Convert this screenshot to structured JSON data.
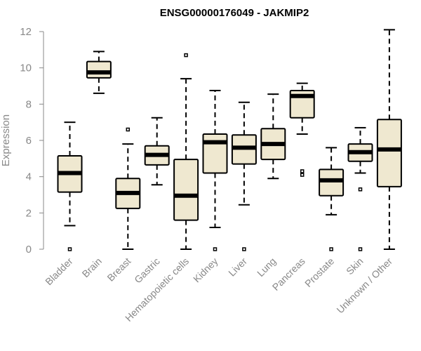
{
  "colors": {
    "box_fill": "#efe8d0",
    "stroke": "#000000",
    "axis": "#888888",
    "text": "#888888"
  },
  "chart_data": {
    "type": "box",
    "title": "ENSG00000176049 - JAKMIP2",
    "xlabel": "",
    "ylabel": "Expression",
    "ylim": [
      0,
      12
    ],
    "yticks": [
      0,
      2,
      4,
      6,
      8,
      10,
      12
    ],
    "categories": [
      "Bladder",
      "Brain",
      "Breast",
      "Gastric",
      "Hematopoietic cells",
      "Kidney",
      "Liver",
      "Lung",
      "Pancreas",
      "Prostate",
      "Skin",
      "Unknown / Other"
    ],
    "boxes": [
      {
        "name": "Bladder",
        "whisker_low": 1.3,
        "q1": 3.15,
        "median": 4.2,
        "q3": 5.15,
        "whisker_high": 7.0,
        "outliers": [
          0.0
        ]
      },
      {
        "name": "Brain",
        "whisker_low": 8.6,
        "q1": 9.45,
        "median": 9.75,
        "q3": 10.35,
        "whisker_high": 10.9,
        "outliers": []
      },
      {
        "name": "Breast",
        "whisker_low": 0.0,
        "q1": 2.25,
        "median": 3.1,
        "q3": 3.9,
        "whisker_high": 5.8,
        "outliers": [
          6.6
        ]
      },
      {
        "name": "Gastric",
        "whisker_low": 3.55,
        "q1": 4.65,
        "median": 5.2,
        "q3": 5.7,
        "whisker_high": 7.25,
        "outliers": []
      },
      {
        "name": "Hematopoietic cells",
        "whisker_low": 0.0,
        "q1": 1.6,
        "median": 2.95,
        "q3": 4.95,
        "whisker_high": 9.4,
        "outliers": [
          10.7
        ]
      },
      {
        "name": "Kidney",
        "whisker_low": 1.2,
        "q1": 4.2,
        "median": 5.9,
        "q3": 6.35,
        "whisker_high": 8.75,
        "outliers": [
          0.0
        ]
      },
      {
        "name": "Liver",
        "whisker_low": 2.45,
        "q1": 4.7,
        "median": 5.6,
        "q3": 6.3,
        "whisker_high": 8.1,
        "outliers": [
          0.0
        ]
      },
      {
        "name": "Lung",
        "whisker_low": 3.9,
        "q1": 4.95,
        "median": 5.8,
        "q3": 6.65,
        "whisker_high": 8.55,
        "outliers": []
      },
      {
        "name": "Pancreas",
        "whisker_low": 6.35,
        "q1": 7.25,
        "median": 8.45,
        "q3": 8.75,
        "whisker_high": 9.15,
        "outliers": [
          4.3,
          4.1
        ]
      },
      {
        "name": "Prostate",
        "whisker_low": 1.9,
        "q1": 2.95,
        "median": 3.8,
        "q3": 4.4,
        "whisker_high": 5.6,
        "outliers": [
          0.0
        ]
      },
      {
        "name": "Skin",
        "whisker_low": 4.2,
        "q1": 4.85,
        "median": 5.35,
        "q3": 5.8,
        "whisker_high": 6.7,
        "outliers": [
          3.3,
          0.0
        ]
      },
      {
        "name": "Unknown / Other",
        "whisker_low": 0.0,
        "q1": 3.45,
        "median": 5.5,
        "q3": 7.15,
        "whisker_high": 12.1,
        "outliers": []
      }
    ]
  }
}
